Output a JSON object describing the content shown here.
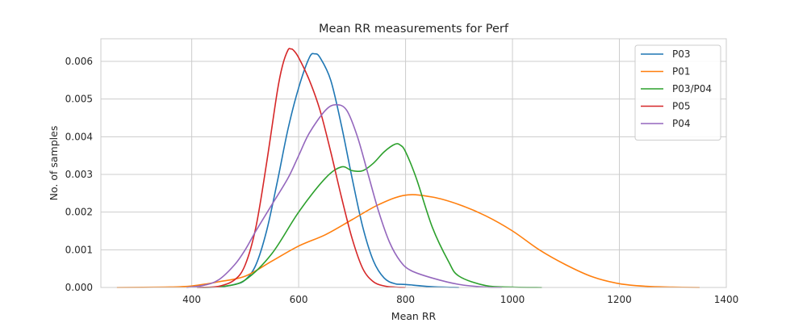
{
  "chart_data": {
    "type": "line",
    "title": "Mean RR measurements for Perf",
    "xlabel": "Mean RR",
    "ylabel": "No. of samples",
    "xlim": [
      230,
      1400
    ],
    "ylim": [
      0,
      0.0066
    ],
    "x_ticks": [
      400,
      600,
      800,
      1000,
      1200,
      1400
    ],
    "y_ticks": [
      0.0,
      0.001,
      0.002,
      0.003,
      0.004,
      0.005,
      0.006
    ],
    "y_tick_labels": [
      "0.000",
      "0.001",
      "0.002",
      "0.003",
      "0.004",
      "0.005",
      "0.006"
    ],
    "grid": true,
    "legend_position": "top-right",
    "series": [
      {
        "name": "P03",
        "color": "#1f77b4",
        "x": [
          410,
          450,
          480,
          500,
          520,
          540,
          560,
          580,
          600,
          620,
          630,
          640,
          660,
          680,
          700,
          720,
          740,
          760,
          780,
          800,
          850,
          900
        ],
        "y": [
          0.0,
          1e-05,
          8e-05,
          0.0002,
          0.0006,
          0.0015,
          0.0028,
          0.0042,
          0.0053,
          0.0061,
          0.0062,
          0.0061,
          0.0055,
          0.0043,
          0.0029,
          0.0016,
          0.0007,
          0.00025,
          0.0001,
          8e-05,
          2e-05,
          0.0
        ]
      },
      {
        "name": "P01",
        "color": "#ff7f0e",
        "x": [
          260,
          350,
          400,
          450,
          500,
          550,
          600,
          650,
          700,
          750,
          800,
          850,
          900,
          950,
          1000,
          1050,
          1100,
          1150,
          1200,
          1250,
          1300,
          1350
        ],
        "y": [
          0.0,
          1e-05,
          4e-05,
          0.00015,
          0.0003,
          0.0007,
          0.0011,
          0.0014,
          0.0018,
          0.0022,
          0.00245,
          0.0024,
          0.0022,
          0.0019,
          0.0015,
          0.001,
          0.0006,
          0.00028,
          0.0001,
          3e-05,
          1e-05,
          0.0
        ]
      },
      {
        "name": "P03/P04",
        "color": "#2ca02c",
        "x": [
          420,
          460,
          500,
          550,
          600,
          650,
          680,
          700,
          720,
          740,
          760,
          780,
          790,
          800,
          820,
          850,
          880,
          900,
          950,
          1000,
          1055
        ],
        "y": [
          0.0,
          3e-05,
          0.0002,
          0.0009,
          0.002,
          0.0029,
          0.0032,
          0.0031,
          0.0031,
          0.0033,
          0.0036,
          0.0038,
          0.00378,
          0.0036,
          0.0029,
          0.0016,
          0.0007,
          0.0003,
          5e-05,
          1e-05,
          0.0
        ]
      },
      {
        "name": "P05",
        "color": "#d62728",
        "x": [
          410,
          450,
          480,
          500,
          520,
          540,
          560,
          570,
          580,
          585,
          590,
          600,
          620,
          640,
          660,
          680,
          700,
          720,
          740,
          760,
          780,
          800
        ],
        "y": [
          0.0,
          3e-05,
          0.0002,
          0.0006,
          0.0016,
          0.0033,
          0.0052,
          0.0059,
          0.0063,
          0.00633,
          0.0063,
          0.0061,
          0.0055,
          0.0047,
          0.0036,
          0.0024,
          0.0013,
          0.0005,
          0.00015,
          4e-05,
          1e-05,
          0.0
        ]
      },
      {
        "name": "P04",
        "color": "#9467bd",
        "x": [
          390,
          420,
          450,
          480,
          500,
          520,
          550,
          580,
          600,
          620,
          650,
          670,
          690,
          710,
          730,
          750,
          770,
          790,
          810,
          850,
          900,
          950,
          980
        ],
        "y": [
          0.0,
          5e-05,
          0.0002,
          0.0006,
          0.001,
          0.0015,
          0.0022,
          0.0029,
          0.0035,
          0.0041,
          0.0047,
          0.00485,
          0.0047,
          0.004,
          0.003,
          0.002,
          0.0012,
          0.0007,
          0.00045,
          0.00025,
          8e-05,
          1e-05,
          0.0
        ]
      }
    ]
  }
}
